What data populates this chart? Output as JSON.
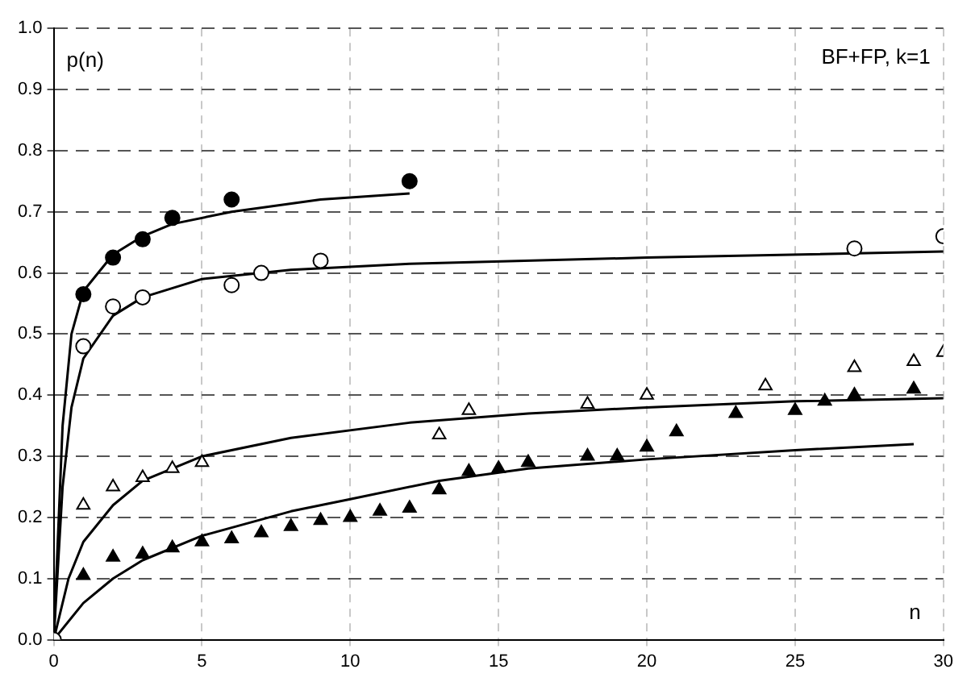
{
  "chart_data": {
    "type": "scatter",
    "title": "BF+FP, k=1",
    "xlabel": "n",
    "ylabel": "p(n)",
    "xlim": [
      0,
      30
    ],
    "xticks": [
      0,
      5,
      10,
      15,
      20,
      25,
      30
    ],
    "ylim": [
      0,
      1
    ],
    "yticks": [
      {
        "value": 0,
        "label": "0.0"
      },
      0.1,
      0.2,
      0.3,
      0.4,
      0.5,
      0.6,
      0.7,
      0.8,
      0.9,
      {
        "value": 1,
        "label": "1.0"
      }
    ],
    "grid": true,
    "legend": false,
    "series": [
      {
        "type": "scatter",
        "marker": "circle",
        "color": "#000000",
        "x": [
          1,
          2,
          3,
          4,
          6,
          12
        ],
        "values": [
          0.565,
          0.625,
          0.655,
          0.69,
          0.72,
          0.75
        ]
      },
      {
        "type": "scatter",
        "marker": "circle",
        "color": "#ffffff",
        "x": [
          0,
          1,
          2,
          3,
          6,
          7,
          9,
          27,
          30
        ],
        "values": [
          0,
          0.48,
          0.545,
          0.56,
          0.58,
          0.6,
          0.62,
          0.64,
          0.66
        ]
      },
      {
        "type": "scatter",
        "marker": "triangle",
        "color": "#ffffff",
        "x": [
          1,
          2,
          3,
          4,
          5,
          13,
          14,
          18,
          20,
          24,
          27,
          29,
          30
        ],
        "values": [
          0.22,
          0.25,
          0.265,
          0.28,
          0.29,
          0.335,
          0.375,
          0.385,
          0.4,
          0.415,
          0.445,
          0.455,
          0.47
        ]
      },
      {
        "type": "scatter",
        "marker": "triangle",
        "color": "#000000",
        "x": [
          1,
          2,
          3,
          4,
          5,
          6,
          7,
          8,
          9,
          10,
          11,
          12,
          13,
          14,
          15,
          16,
          18,
          19,
          20,
          21,
          23,
          25,
          26,
          27,
          29
        ],
        "values": [
          0.105,
          0.135,
          0.14,
          0.15,
          0.16,
          0.165,
          0.175,
          0.185,
          0.195,
          0.2,
          0.21,
          0.215,
          0.245,
          0.275,
          0.28,
          0.29,
          0.3,
          0.3,
          0.315,
          0.34,
          0.37,
          0.375,
          0.39,
          0.4,
          0.41
        ]
      },
      {
        "type": "line",
        "marker": "none",
        "line_style": "solid",
        "color": "#000000",
        "x": [
          0,
          0.3,
          0.6,
          1,
          2,
          3,
          4,
          6,
          9,
          12
        ],
        "values": [
          0,
          0.35,
          0.5,
          0.57,
          0.63,
          0.66,
          0.68,
          0.7,
          0.72,
          0.73
        ]
      },
      {
        "type": "line",
        "marker": "none",
        "line_style": "solid",
        "color": "#000000",
        "x": [
          0,
          0.3,
          0.6,
          1,
          2,
          3,
          5,
          8,
          12,
          20,
          30
        ],
        "values": [
          0,
          0.25,
          0.38,
          0.46,
          0.53,
          0.56,
          0.59,
          0.605,
          0.615,
          0.625,
          0.635
        ]
      },
      {
        "type": "line",
        "marker": "none",
        "line_style": "solid",
        "color": "#000000",
        "x": [
          0,
          0.5,
          1,
          2,
          3,
          5,
          8,
          12,
          16,
          20,
          25,
          30
        ],
        "values": [
          0,
          0.1,
          0.16,
          0.22,
          0.26,
          0.3,
          0.33,
          0.355,
          0.37,
          0.38,
          0.39,
          0.395
        ]
      },
      {
        "type": "line",
        "marker": "none",
        "line_style": "solid",
        "color": "#000000",
        "x": [
          0,
          1,
          2,
          3,
          5,
          8,
          10,
          13,
          16,
          20,
          25,
          29
        ],
        "values": [
          0,
          0.06,
          0.1,
          0.13,
          0.17,
          0.21,
          0.23,
          0.26,
          0.28,
          0.295,
          0.31,
          0.32
        ]
      }
    ]
  }
}
